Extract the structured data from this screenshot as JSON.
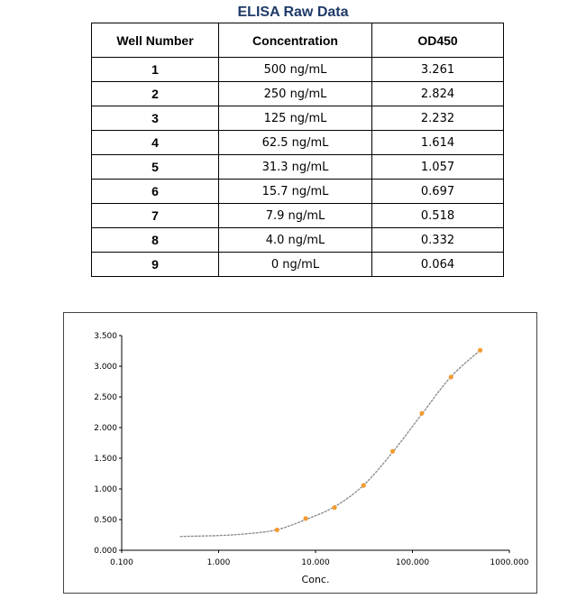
{
  "title": "ELISA Raw Data",
  "table": {
    "headers": [
      "Well Number",
      "Concentration",
      "OD450"
    ],
    "rows": [
      [
        "1",
        "500 ng/mL",
        "3.261"
      ],
      [
        "2",
        "250 ng/mL",
        "2.824"
      ],
      [
        "3",
        "125 ng/mL",
        "2.232"
      ],
      [
        "4",
        "62.5 ng/mL",
        "1.614"
      ],
      [
        "5",
        "31.3 ng/mL",
        "1.057"
      ],
      [
        "6",
        "15.7 ng/mL",
        "0.697"
      ],
      [
        "7",
        "7.9 ng/mL",
        "0.518"
      ],
      [
        "8",
        "4.0 ng/mL",
        "0.332"
      ],
      [
        "9",
        "0 ng/mL",
        "0.064"
      ]
    ]
  },
  "chart_data": {
    "type": "scatter",
    "xlabel": "Conc.",
    "ylabel": "",
    "xscale": "log",
    "xlim": [
      0.1,
      1000
    ],
    "ylim": [
      0,
      3.5
    ],
    "xticks": [
      "0.100",
      "1.000",
      "10.000",
      "100.000",
      "1000.000"
    ],
    "yticks": [
      "0.000",
      "0.500",
      "1.000",
      "1.500",
      "2.000",
      "2.500",
      "3.000",
      "3.500"
    ],
    "grid": false,
    "legend": "none",
    "series": [
      {
        "x": [
          500,
          250,
          125,
          62.5,
          31.3,
          15.7,
          7.9,
          4.0
        ],
        "y": [
          3.261,
          2.824,
          2.232,
          1.614,
          1.057,
          0.697,
          0.518,
          0.332
        ]
      }
    ],
    "fit_curve": {
      "x": [
        0.4,
        1,
        2,
        4,
        7.9,
        15.7,
        31.3,
        62.5,
        125,
        250,
        500
      ],
      "y": [
        0.225,
        0.24,
        0.27,
        0.335,
        0.5,
        0.71,
        1.06,
        1.6,
        2.22,
        2.83,
        3.26
      ]
    },
    "colors": {
      "marker": "#f39c34",
      "curve": "#888888",
      "axis": "#000000"
    }
  }
}
